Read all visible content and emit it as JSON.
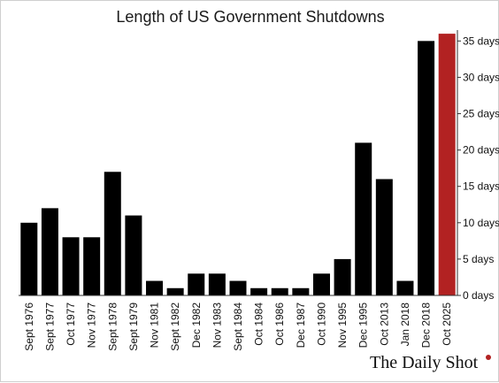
{
  "chart_data": {
    "type": "bar",
    "title": "Length of US Government Shutdowns",
    "xlabel": "",
    "ylabel": "",
    "categories": [
      "Sept 1976",
      "Sept 1977",
      "Oct 1977",
      "Nov 1977",
      "Sept 1978",
      "Sept 1979",
      "Nov 1981",
      "Sept 1982",
      "Dec 1982",
      "Nov 1983",
      "Sept 1984",
      "Oct 1984",
      "Oct 1986",
      "Dec 1987",
      "Oct 1990",
      "Nov 1995",
      "Dec 1995",
      "Oct 2013",
      "Jan 2018",
      "Dec 2018",
      "Oct 2025"
    ],
    "values": [
      10,
      12,
      8,
      8,
      17,
      11,
      2,
      1,
      3,
      3,
      2,
      1,
      1,
      1,
      3,
      5,
      21,
      16,
      2,
      35,
      36
    ],
    "ylim": [
      0,
      35
    ],
    "yticks": [
      "0 days",
      "5 days",
      "10 days",
      "15 days",
      "20 days",
      "25 days",
      "30 days",
      "35 days"
    ],
    "ytick_values": [
      0,
      5,
      10,
      15,
      20,
      25,
      30,
      35
    ],
    "y_axis_side": "right",
    "grid": false,
    "legend": "none",
    "bar_color": "#000000",
    "highlight_color": "#b22222",
    "highlight_index": 20
  },
  "brand": {
    "name": "The Daily Shot",
    "registered_mark": "®"
  }
}
